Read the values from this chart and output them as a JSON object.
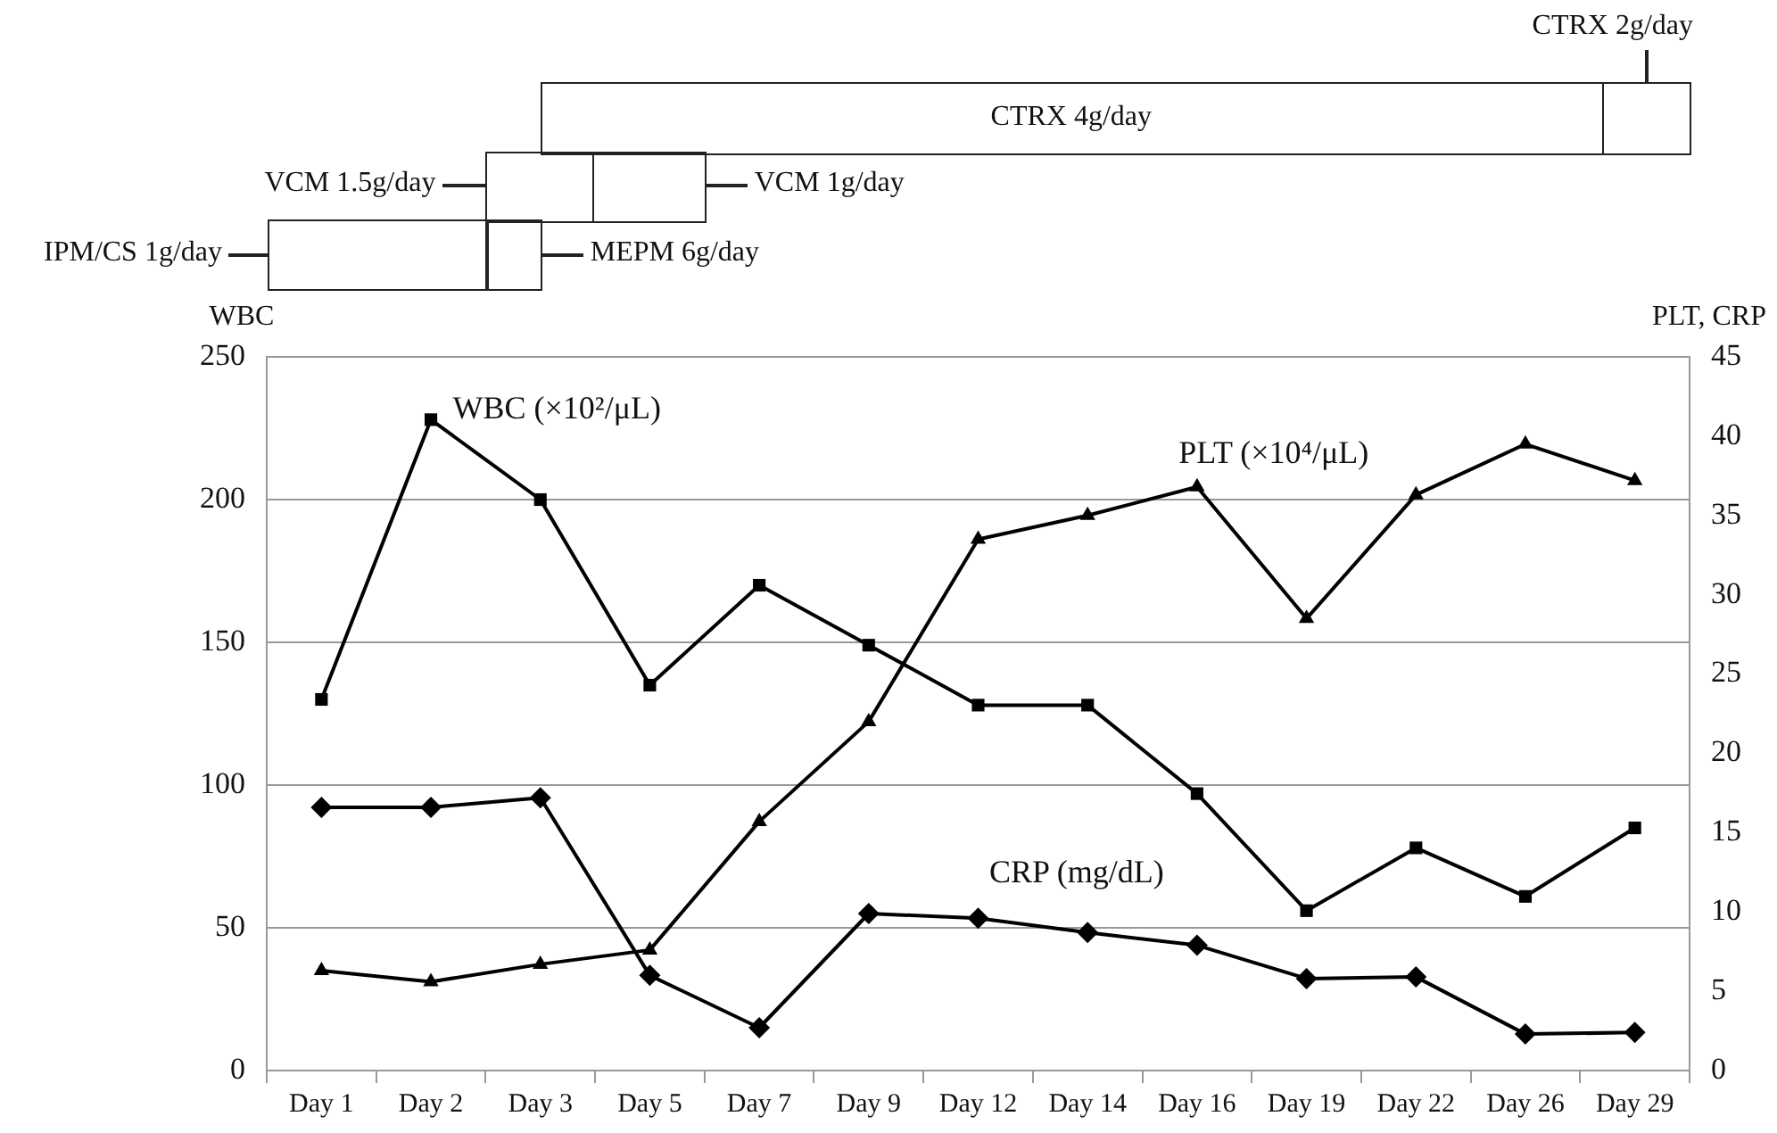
{
  "chart_data": {
    "type": "line",
    "ylabel": "WBC",
    "y2label": "PLT, CRP",
    "categories": [
      "Day 1",
      "Day 2",
      "Day 3",
      "Day 5",
      "Day 7",
      "Day 9",
      "Day 12",
      "Day 14",
      "Day 16",
      "Day 19",
      "Day 22",
      "Day 26",
      "Day 29"
    ],
    "series": [
      {
        "name": "WBC (×10²/μL)",
        "color": "#000000",
        "marker": "square",
        "values": [
          130,
          228,
          200,
          135,
          170,
          149,
          128,
          128,
          97,
          56,
          78,
          61,
          85
        ]
      },
      {
        "name": "PLT (×10⁴/μL)",
        "color": "#000000",
        "marker": "triangle",
        "axis": "y2",
        "values": [
          6.3,
          5.6,
          6.7,
          7.6,
          15.7,
          22,
          33.5,
          35,
          36.8,
          28.5,
          36.3,
          39.5,
          37.2
        ]
      },
      {
        "name": "CRP (mg/dL)",
        "color": "#000000",
        "marker": "diamond",
        "axis": "y2",
        "values": [
          16.6,
          16.6,
          17.2,
          6,
          2.7,
          9.9,
          9.6,
          8.7,
          7.9,
          5.8,
          5.9,
          2.3,
          2.4
        ]
      }
    ],
    "ylim": [
      0,
      250
    ],
    "yticks": [
      0,
      50,
      100,
      150,
      200,
      250
    ],
    "y2lim": [
      0,
      45
    ],
    "y2ticks": [
      0,
      5,
      10,
      15,
      20,
      25,
      30,
      35,
      40,
      45
    ],
    "grid": "y",
    "legend": false,
    "line_style": "solid",
    "annotations": [
      "CTRX 2g/day",
      "CTRX 4g/day",
      "VCM 1.5g/day",
      "VCM 1g/day",
      "IPM/CS 1g/day",
      "MEPM 6g/day"
    ]
  }
}
